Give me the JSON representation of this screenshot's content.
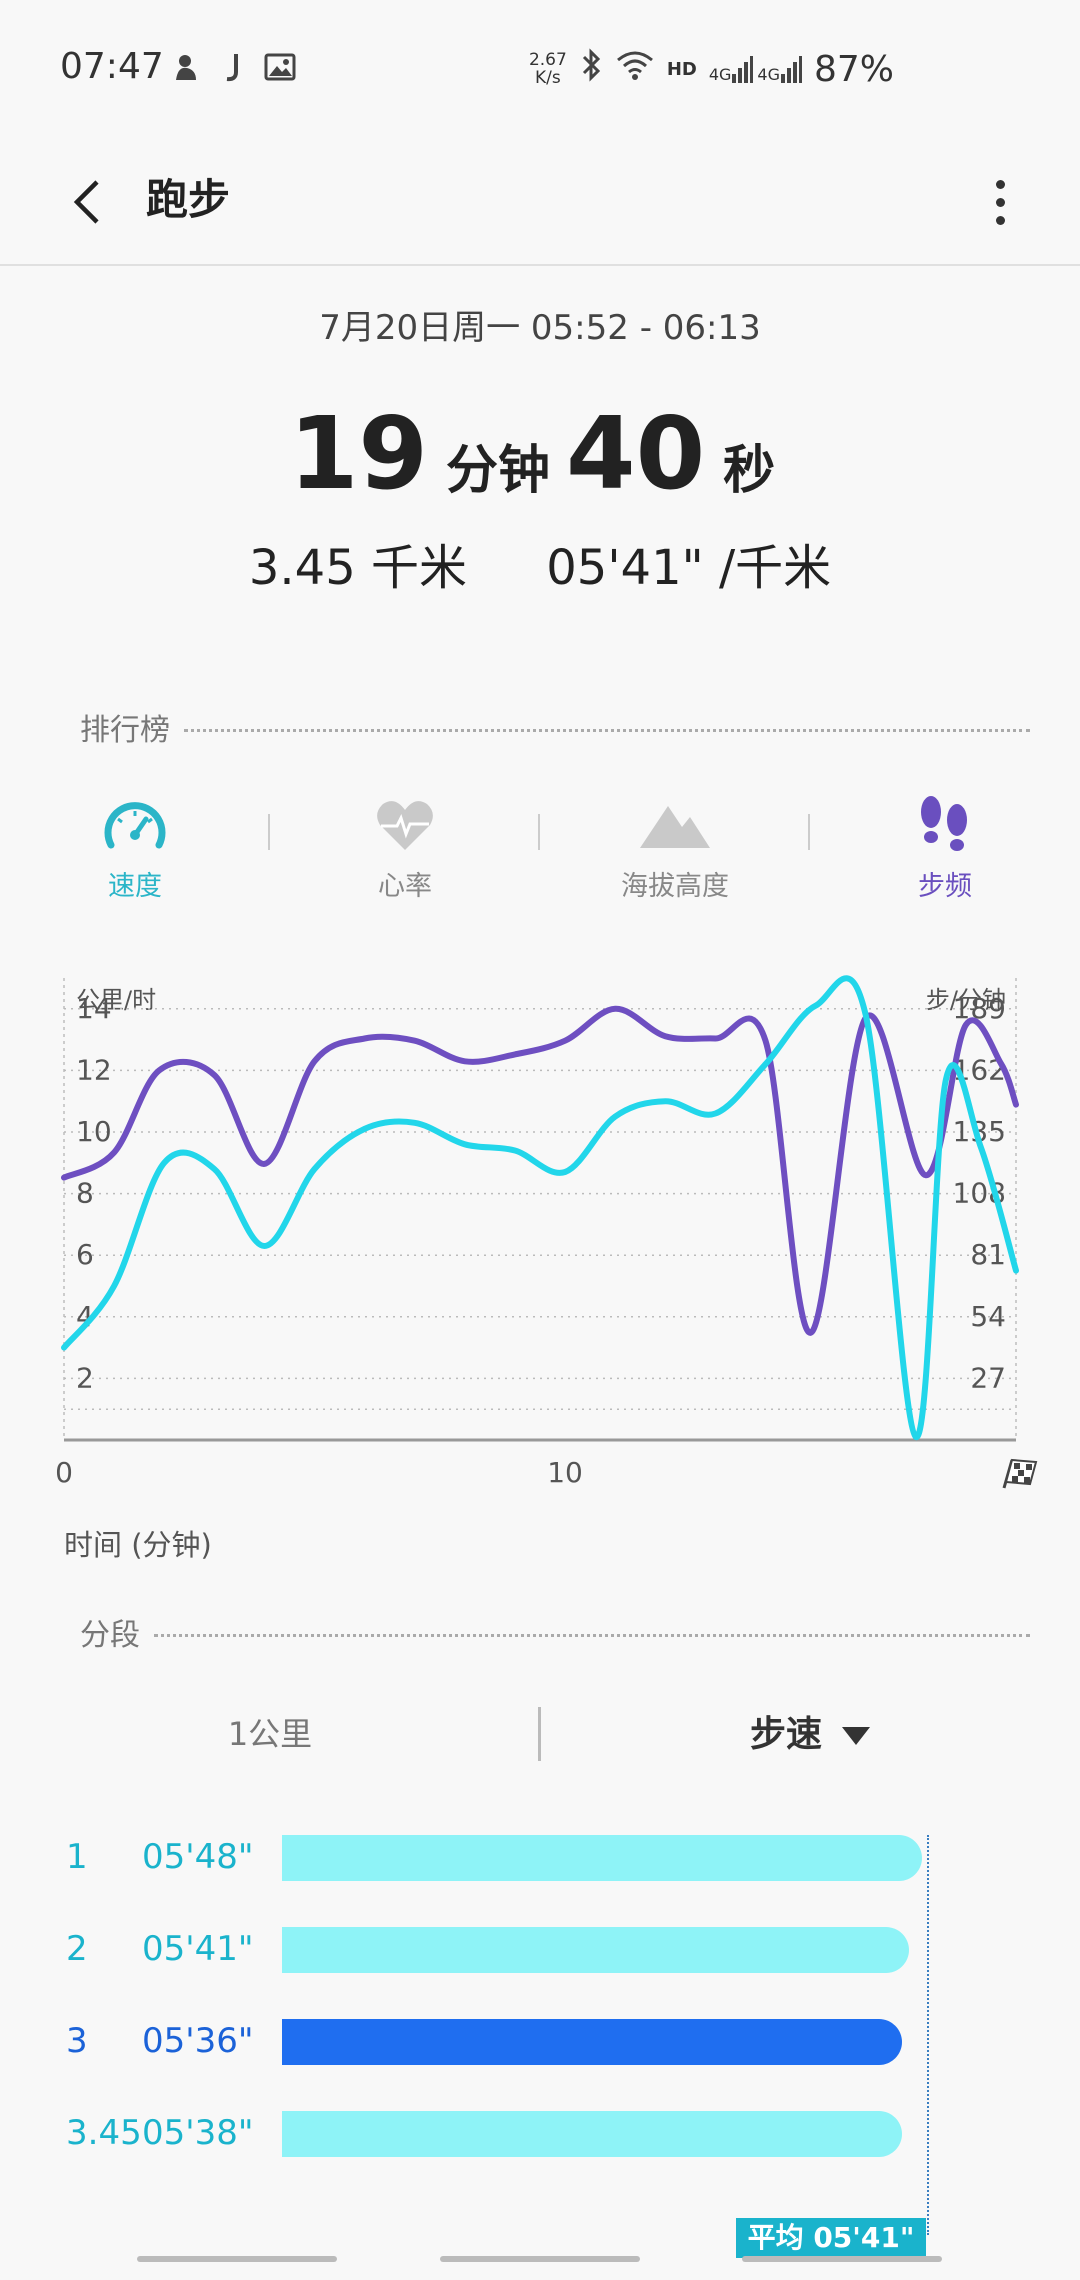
{
  "status_bar": {
    "time": "07:47",
    "net_speed_value": "2.67",
    "net_speed_unit": "K/s",
    "hd": "HD",
    "signal1": "4G",
    "signal2": "4G",
    "battery": "87%",
    "icons": [
      "notification-icon",
      "music-icon",
      "image-icon",
      "bluetooth-icon",
      "wifi-icon",
      "signal-icon"
    ]
  },
  "app_bar": {
    "title": "跑步"
  },
  "summary": {
    "date": "7月20日周一 05:52 - 06:13",
    "minutes": "19",
    "minutes_unit": "分钟",
    "seconds": "40",
    "seconds_unit": "秒",
    "distance": "3.45 千米",
    "pace": "05'41\" /千米"
  },
  "leaderboard": {
    "label": "排行榜"
  },
  "tabs": [
    {
      "label": "速度",
      "icon": "speedometer-icon",
      "color": "#2bb5c8"
    },
    {
      "label": "心率",
      "icon": "heart-icon",
      "color": "#888888"
    },
    {
      "label": "海拔高度",
      "icon": "mountain-icon",
      "color": "#888888"
    },
    {
      "label": "步频",
      "icon": "footsteps-icon",
      "color": "#6a4fbf"
    }
  ],
  "chart_data": {
    "type": "line",
    "left_axis_label": "公里/时",
    "right_axis_label": "步/分钟",
    "left_ticks": [
      "14",
      "12",
      "10",
      "8",
      "6",
      "4",
      "2"
    ],
    "right_ticks": [
      "189",
      "162",
      "135",
      "108",
      "81",
      "54",
      "27"
    ],
    "x_ticks": [
      "0",
      "10"
    ],
    "xlabel": "时间 (分钟)",
    "xlim": [
      0,
      19
    ],
    "ylim_left": [
      0,
      15
    ],
    "ylim_right": [
      0,
      202.5
    ],
    "series": [
      {
        "axis": "left",
        "color": "#22d6ea",
        "x": [
          0,
          1,
          2,
          3,
          4,
          5,
          6,
          7,
          8,
          9,
          10,
          11,
          12,
          13,
          14,
          15,
          16,
          17,
          17.6,
          18.3,
          19
        ],
        "values": [
          3,
          5,
          9,
          8.8,
          6.3,
          8.8,
          10.1,
          10.3,
          9.6,
          9.4,
          8.7,
          10.5,
          11,
          10.6,
          12.2,
          14.1,
          13.8,
          0.1,
          11.7,
          9.5,
          5.5
        ]
      },
      {
        "axis": "right",
        "color": "#6e4fc1",
        "x": [
          0,
          1,
          1.9,
          3,
          4,
          5,
          6,
          7,
          8,
          9,
          10,
          11,
          12,
          13,
          14,
          14.9,
          16,
          17.2,
          18,
          18.7,
          19
        ],
        "values": [
          115,
          126,
          162,
          160,
          121,
          166,
          176,
          175,
          166,
          169,
          175,
          189,
          177,
          176,
          175,
          47,
          185,
          116,
          182,
          165,
          147
        ]
      }
    ],
    "grid": true
  },
  "splits": {
    "label": "分段",
    "toggle_left": "1公里",
    "toggle_right": "步速",
    "rows": [
      {
        "km": "1",
        "pace": "05'48\"",
        "fraction": 0.97
      },
      {
        "km": "2",
        "pace": "05'41\"",
        "fraction": 0.95
      },
      {
        "km": "3",
        "pace": "05'36\"",
        "fraction": 0.94,
        "active": true
      },
      {
        "km": "3.45",
        "pace": "05'38\"",
        "fraction": 0.94
      }
    ],
    "average_tag": "平均 05'41\""
  }
}
